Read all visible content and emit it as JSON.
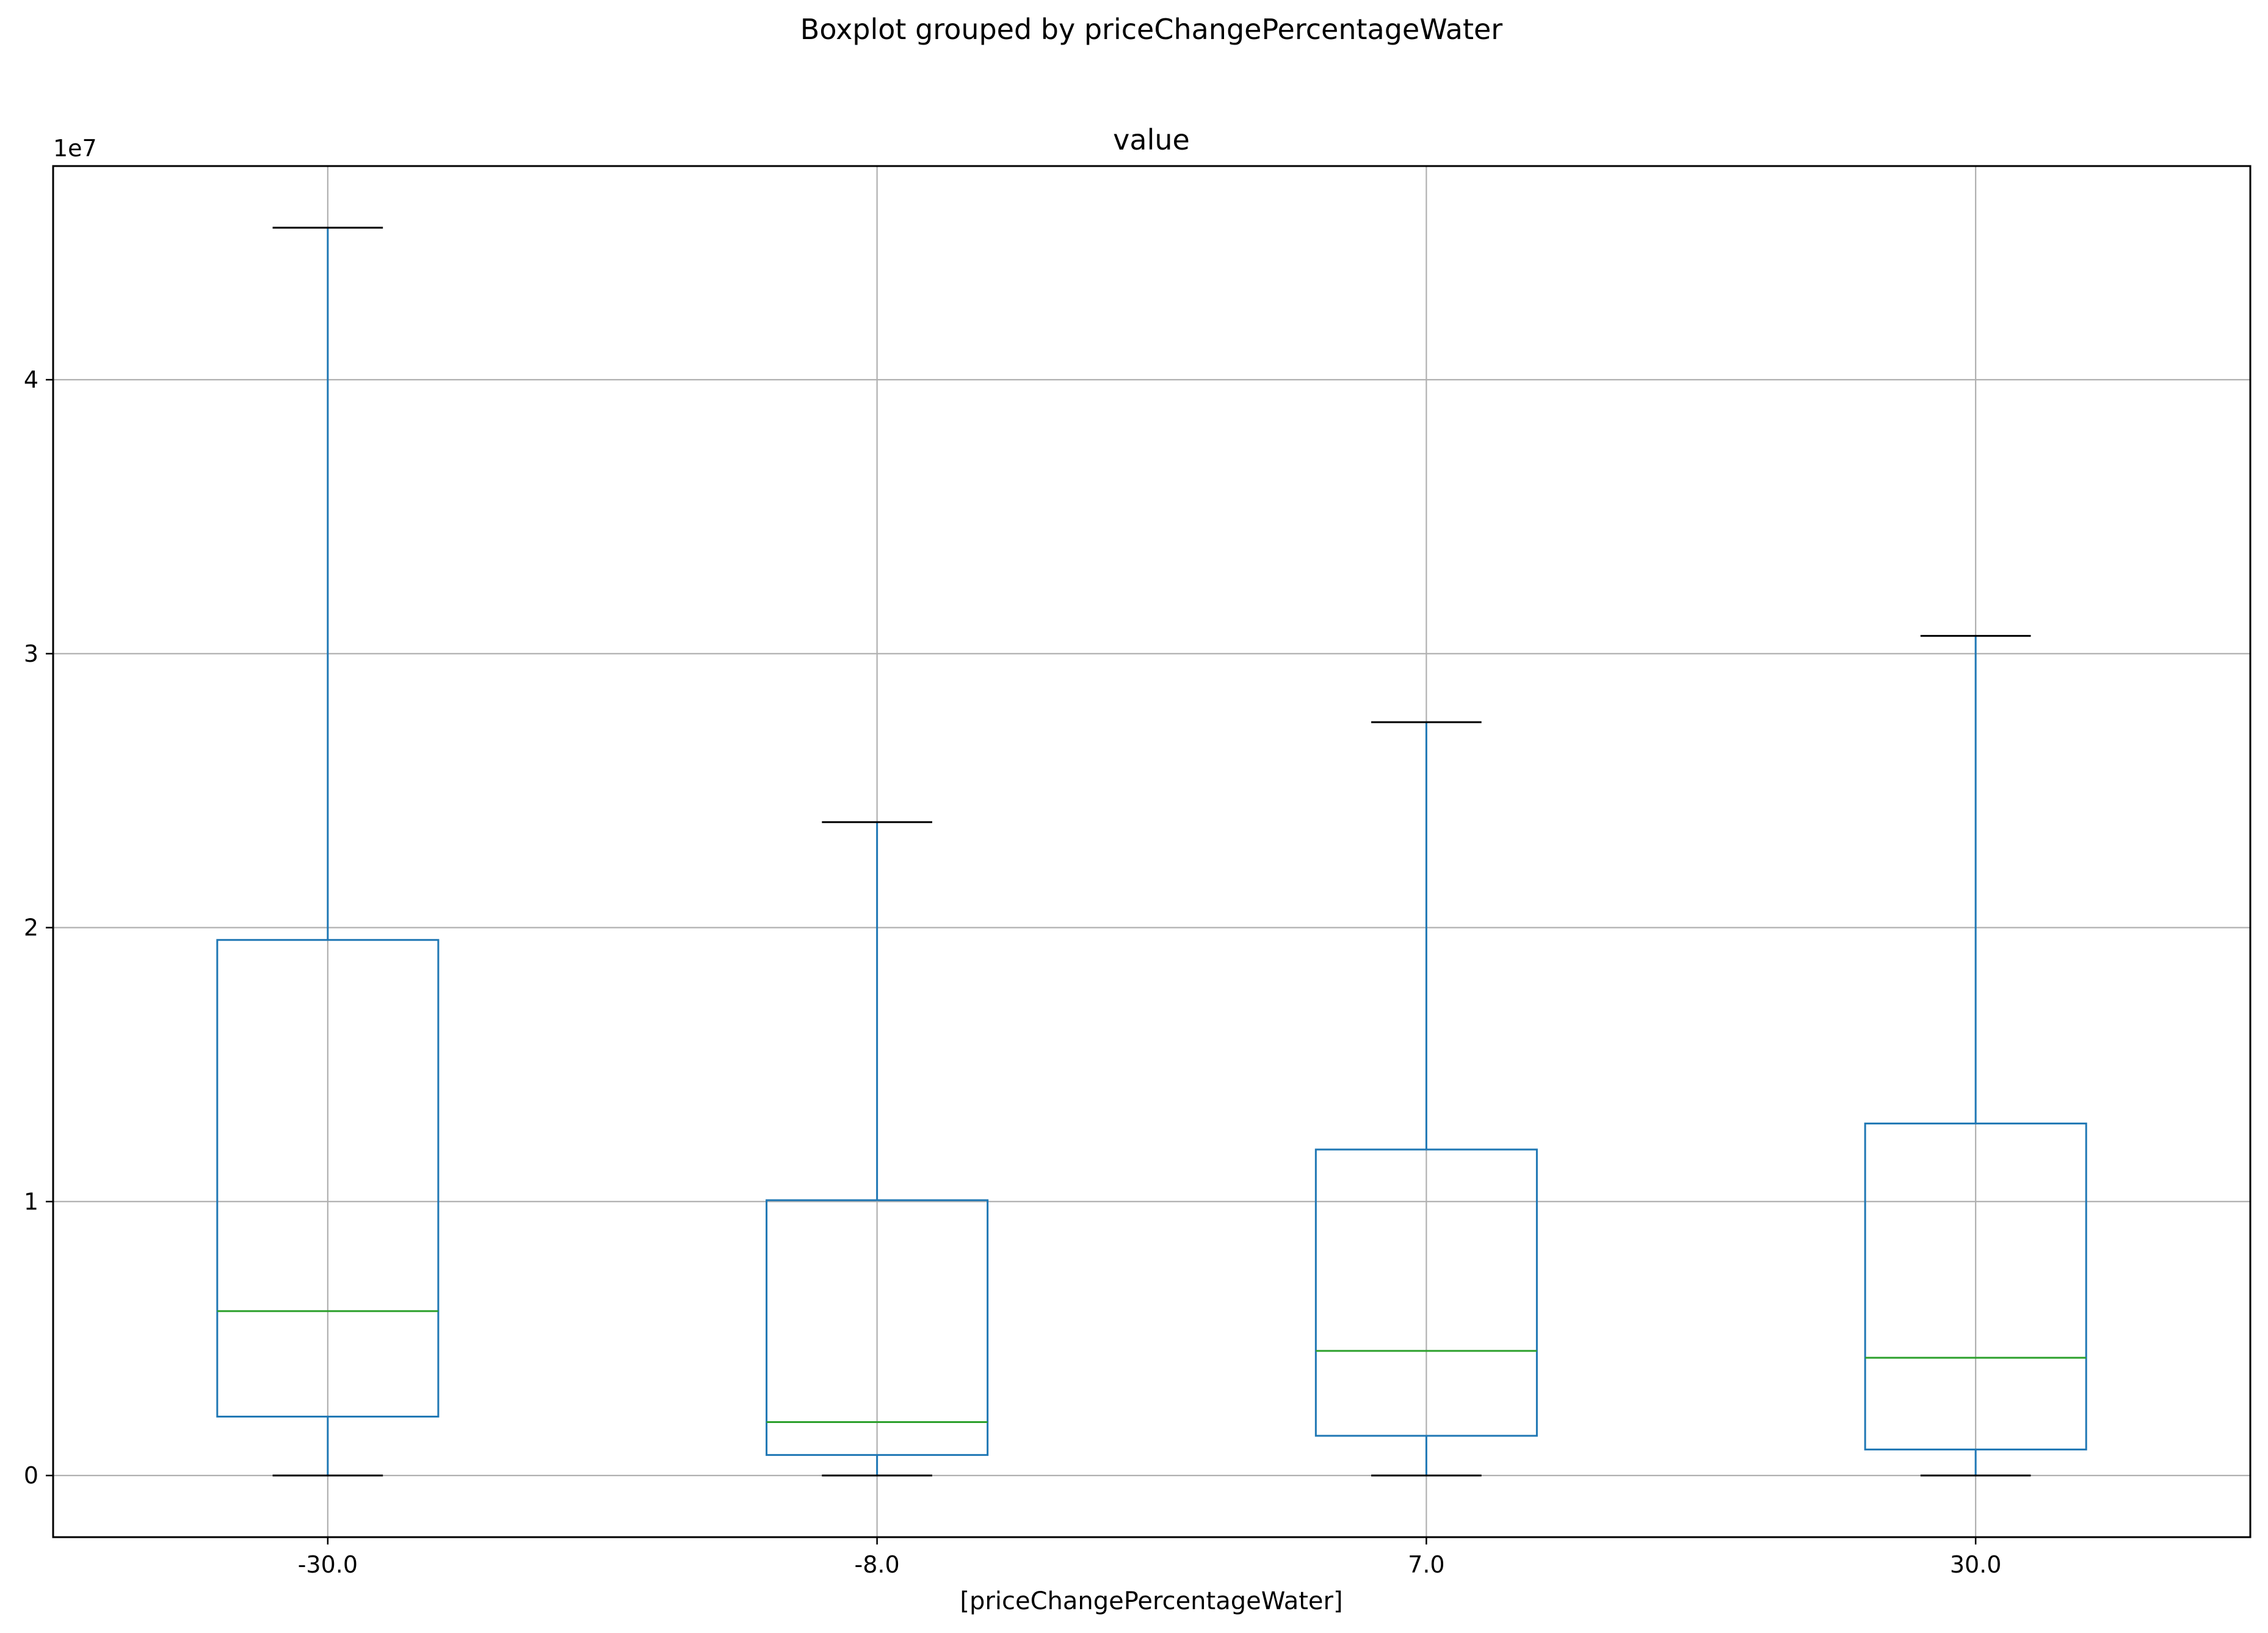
{
  "chart_data": {
    "type": "boxplot",
    "suptitle": "Boxplot grouped by priceChangePercentageWater",
    "title": "value",
    "xlabel": "[priceChangePercentageWater]",
    "ylabel": "",
    "y_offset_label": "1e7",
    "y_scale": 10000000,
    "ylim": [
      -0.225,
      4.78
    ],
    "yticks": [
      0,
      1,
      2,
      3,
      4
    ],
    "ytick_labels": [
      "0",
      "1",
      "2",
      "3",
      "4"
    ],
    "categories": [
      "-30.0",
      "-8.0",
      "7.0",
      "30.0"
    ],
    "boxes": [
      {
        "category": "-30.0",
        "whisker_low": 0.0,
        "q1": 0.215,
        "median": 0.6,
        "q3": 1.955,
        "whisker_high": 4.555
      },
      {
        "category": "-8.0",
        "whisker_low": 0.0,
        "q1": 0.075,
        "median": 0.195,
        "q3": 1.005,
        "whisker_high": 2.385
      },
      {
        "category": "7.0",
        "whisker_low": 0.0,
        "q1": 0.145,
        "median": 0.455,
        "q3": 1.19,
        "whisker_high": 2.75
      },
      {
        "category": "30.0",
        "whisker_low": 0.0,
        "q1": 0.095,
        "median": 0.43,
        "q3": 1.285,
        "whisker_high": 3.065
      }
    ],
    "grid": true,
    "colors": {
      "box": "#1f77b4",
      "median": "#2ca02c",
      "cap": "#000000",
      "grid": "#b0b0b0",
      "frame": "#000000"
    }
  }
}
